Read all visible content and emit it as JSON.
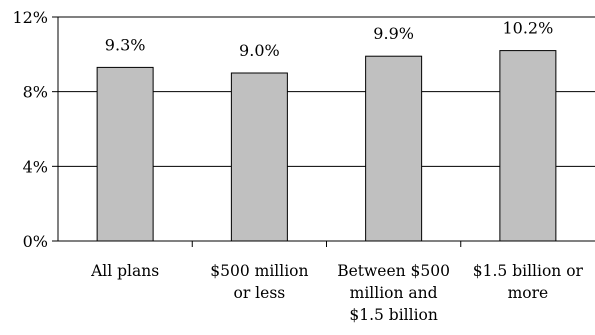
{
  "chart_data": {
    "type": "bar",
    "categories": [
      [
        "All plans"
      ],
      [
        "$500 million",
        "or less"
      ],
      [
        "Between $500",
        "million and",
        "$1.5 billion"
      ],
      [
        "$1.5 billion or",
        "more"
      ]
    ],
    "values": [
      9.3,
      9.0,
      9.9,
      10.2
    ],
    "data_labels": [
      "9.3%",
      "9.0%",
      "9.9%",
      "10.2%"
    ],
    "ylim": [
      0,
      12
    ],
    "yticks": [
      0,
      4,
      8,
      12
    ],
    "ytick_labels": [
      "0%",
      "4%",
      "8%",
      "12%"
    ],
    "grid": true,
    "bar_color": "#c0c0c0",
    "bar_edge_color": "#000000",
    "title": "",
    "xlabel": "",
    "ylabel": ""
  }
}
